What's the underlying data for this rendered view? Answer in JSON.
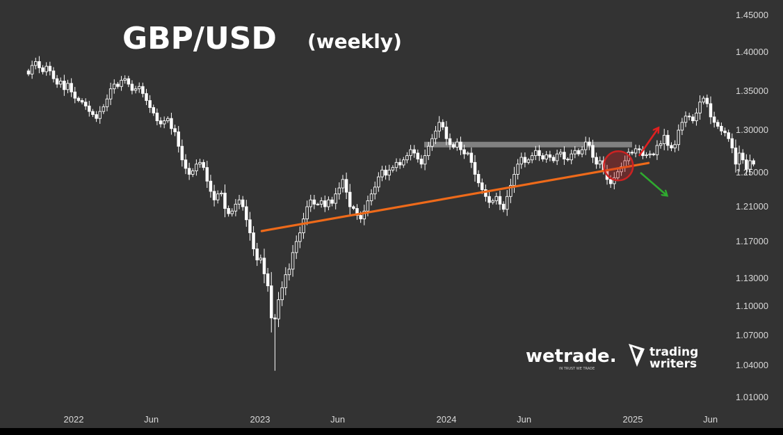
{
  "chart_data": {
    "type": "candlestick",
    "title": "GBP/USD",
    "subtitle": "(weekly)",
    "y_ticks": [
      "1.45000",
      "1.40000",
      "1.35000",
      "1.30000",
      "1.25000",
      "1.21000",
      "1.17000",
      "1.13000",
      "1.10000",
      "1.07000",
      "1.04000",
      "1.01000"
    ],
    "y_tick_values": [
      1.45,
      1.4,
      1.35,
      1.3,
      1.25,
      1.21,
      1.17,
      1.13,
      1.1,
      1.07,
      1.04,
      1.01
    ],
    "x_ticks": [
      "2022",
      "Jun",
      "2023",
      "Jun",
      "2024",
      "Jun",
      "2025",
      "Jun"
    ],
    "x_tick_dates": [
      "2022-01",
      "2022-06",
      "2023-01",
      "2023-06",
      "2024-01",
      "2024-06",
      "2025-01",
      "2025-06"
    ],
    "ylim": [
      0.995,
      1.465
    ],
    "xlim": [
      "2021-10",
      "2025-07"
    ],
    "candle_up_color": "#ffffff",
    "candle_down_color": "#ffffff",
    "grid": false,
    "closes": [
      1.372,
      1.383,
      1.388,
      1.38,
      1.375,
      1.382,
      1.376,
      1.366,
      1.359,
      1.363,
      1.352,
      1.36,
      1.349,
      1.341,
      1.338,
      1.336,
      1.331,
      1.324,
      1.32,
      1.315,
      1.324,
      1.33,
      1.34,
      1.353,
      1.359,
      1.356,
      1.364,
      1.366,
      1.359,
      1.351,
      1.353,
      1.356,
      1.347,
      1.338,
      1.329,
      1.322,
      1.312,
      1.308,
      1.312,
      1.315,
      1.302,
      1.298,
      1.281,
      1.265,
      1.255,
      1.248,
      1.252,
      1.26,
      1.262,
      1.256,
      1.24,
      1.228,
      1.218,
      1.225,
      1.226,
      1.208,
      1.202,
      1.205,
      1.213,
      1.218,
      1.21,
      1.195,
      1.18,
      1.162,
      1.15,
      1.152,
      1.135,
      1.122,
      1.088,
      1.087,
      1.107,
      1.12,
      1.134,
      1.14,
      1.158,
      1.17,
      1.18,
      1.196,
      1.21,
      1.218,
      1.213,
      1.213,
      1.217,
      1.21,
      1.218,
      1.214,
      1.225,
      1.232,
      1.242,
      1.227,
      1.21,
      1.208,
      1.2,
      1.196,
      1.205,
      1.217,
      1.225,
      1.233,
      1.245,
      1.253,
      1.247,
      1.253,
      1.256,
      1.262,
      1.259,
      1.265,
      1.27,
      1.277,
      1.273,
      1.266,
      1.26,
      1.27,
      1.281,
      1.29,
      1.299,
      1.31,
      1.304,
      1.29,
      1.283,
      1.28,
      1.286,
      1.277,
      1.272,
      1.273,
      1.262,
      1.248,
      1.238,
      1.23,
      1.222,
      1.215,
      1.217,
      1.222,
      1.213,
      1.207,
      1.222,
      1.235,
      1.248,
      1.26,
      1.268,
      1.262,
      1.265,
      1.27,
      1.276,
      1.27,
      1.266,
      1.271,
      1.268,
      1.264,
      1.272,
      1.274,
      1.266,
      1.265,
      1.272,
      1.276,
      1.272,
      1.277,
      1.286,
      1.282,
      1.268,
      1.26,
      1.264,
      1.253,
      1.242,
      1.237,
      1.244,
      1.251,
      1.257,
      1.264,
      1.274,
      1.273,
      1.278,
      1.277,
      1.27,
      1.271,
      1.272,
      1.271,
      1.282,
      1.284,
      1.294,
      1.282,
      1.279,
      1.283,
      1.3,
      1.31,
      1.318,
      1.317,
      1.312,
      1.322,
      1.336,
      1.341,
      1.334,
      1.317,
      1.31,
      1.305,
      1.299,
      1.297,
      1.29,
      1.279,
      1.26,
      1.273,
      1.265,
      1.254,
      1.264,
      1.26
    ],
    "annotations": {
      "resistance_level": 1.283,
      "support_trendline": {
        "from": {
          "date": "2023-02",
          "value": 1.182
        },
        "to": {
          "date": "2024-12",
          "value": 1.263
        }
      },
      "highlight_circle": {
        "date": "2024-11",
        "value": 1.258
      },
      "arrow_up_color": "#e02020",
      "arrow_down_color": "#2faa2f",
      "trendline_color": "#ee6a1a",
      "resistance_color": "#8a8a8a",
      "circle_color": "#cc2222"
    }
  },
  "logos": {
    "wetrade": {
      "name": "wetrade.",
      "tagline": "IN TRUST WE TRADE"
    },
    "trading_writers": {
      "line1": "trading",
      "line2": "writers"
    }
  }
}
